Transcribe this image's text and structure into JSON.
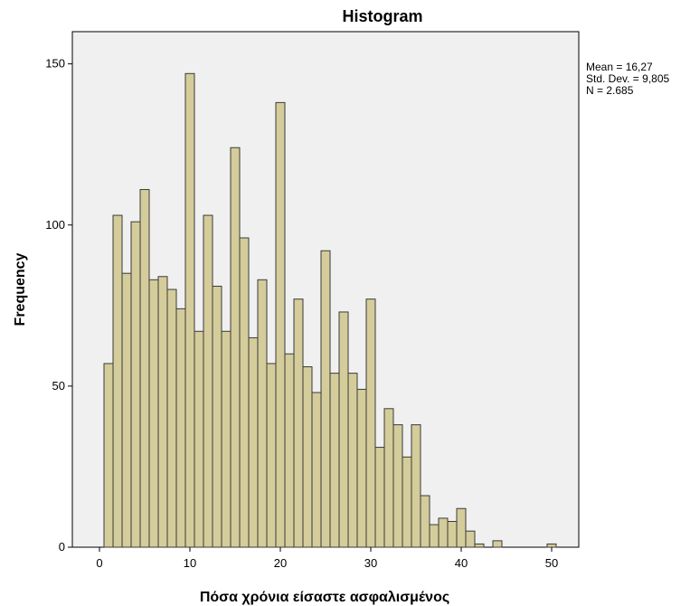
{
  "chart_data": {
    "type": "bar",
    "title": "Histogram",
    "xlabel": "Πόσα χρόνια είσαστε ασφαλισμένος",
    "ylabel": "Frequency",
    "xlim": [
      -3,
      53
    ],
    "ylim": [
      0,
      160
    ],
    "xticks": [
      0,
      10,
      20,
      30,
      40,
      50
    ],
    "yticks": [
      0,
      50,
      100,
      150
    ],
    "grid": false,
    "bin_width": 1,
    "bins": [
      1,
      2,
      3,
      4,
      5,
      6,
      7,
      8,
      9,
      10,
      11,
      12,
      13,
      14,
      15,
      16,
      17,
      18,
      19,
      20,
      21,
      22,
      23,
      24,
      25,
      26,
      27,
      28,
      29,
      30,
      31,
      32,
      33,
      34,
      35,
      36,
      37,
      38,
      39,
      40,
      41,
      42,
      43,
      44,
      45,
      46,
      47,
      48,
      49,
      50
    ],
    "values": [
      57,
      103,
      85,
      101,
      111,
      83,
      84,
      80,
      74,
      147,
      67,
      103,
      81,
      67,
      124,
      96,
      65,
      83,
      57,
      138,
      60,
      77,
      56,
      48,
      92,
      54,
      73,
      54,
      49,
      77,
      31,
      43,
      38,
      28,
      38,
      16,
      7,
      9,
      8,
      12,
      5,
      1,
      0,
      2,
      0,
      0,
      0,
      0,
      0,
      1
    ],
    "colors": {
      "bar_fill": "#d4cc9a",
      "bar_stroke": "#3a3a3a",
      "plot_bg": "#f0f0f0"
    }
  },
  "stats": {
    "mean": "Mean = 16,27",
    "std": "Std. Dev. = 9,805",
    "n": "N = 2.685"
  }
}
